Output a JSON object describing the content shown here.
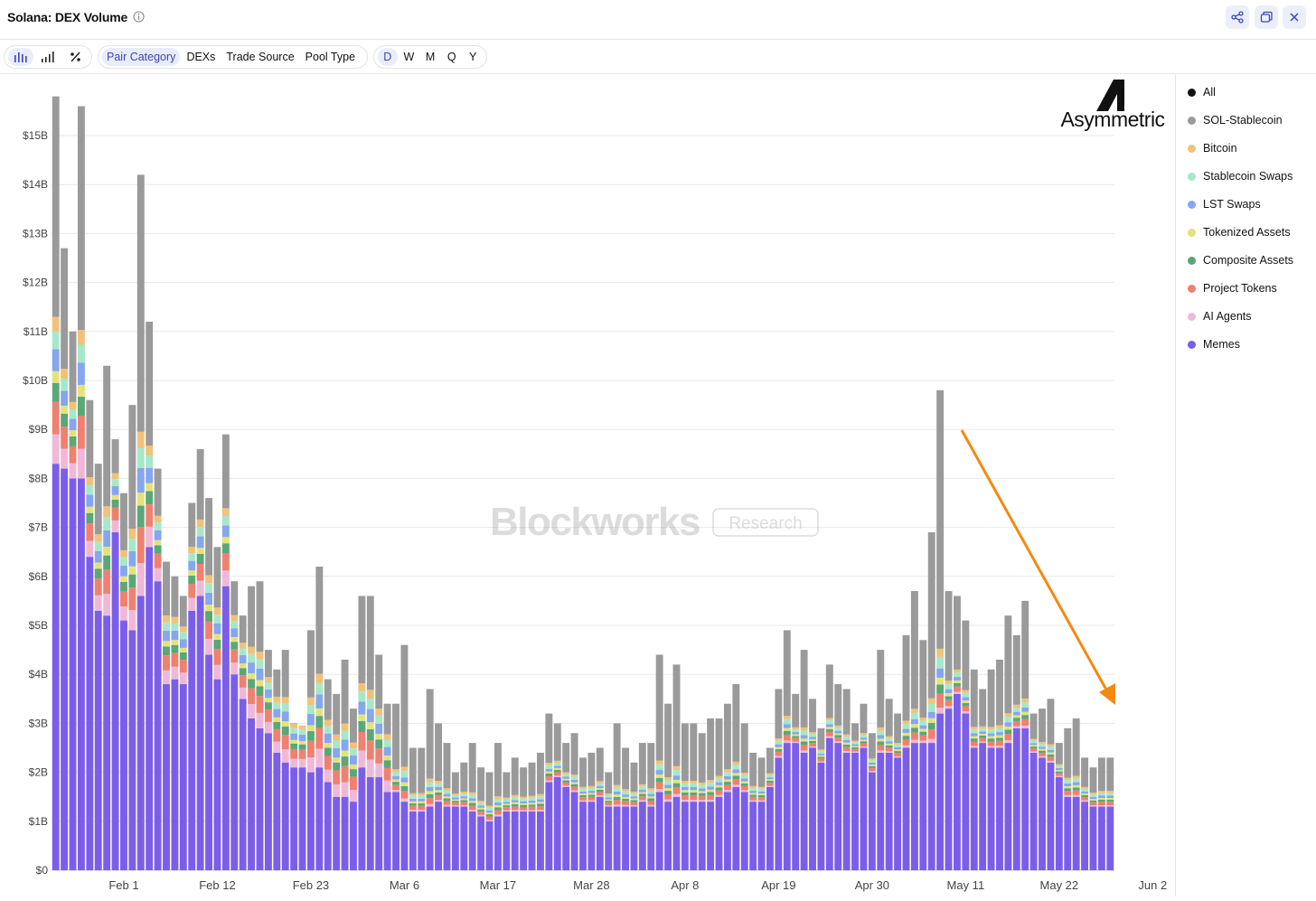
{
  "header": {
    "title": "Solana: DEX Volume"
  },
  "toolbar": {
    "chart_type_buttons": [
      "bar-chart",
      "stacked-bar-chart",
      "percent"
    ],
    "group_tabs": [
      "Pair Category",
      "DEXs",
      "Trade Source",
      "Pool Type"
    ],
    "selected_group": "Pair Category",
    "interval_tabs": [
      "D",
      "W",
      "M",
      "Q",
      "Y"
    ],
    "selected_interval": "D"
  },
  "watermark": {
    "main": "Blockworks",
    "badge": "Research"
  },
  "logo": {
    "text": "Asymmetric"
  },
  "colors": {
    "Memes": "#7b5ee8",
    "AI Agents": "#f0b8d8",
    "Project Tokens": "#f08070",
    "Composite Assets": "#5aa777",
    "Tokenized Assets": "#e3e37a",
    "LST Swaps": "#86a6ef",
    "Stablecoin Swaps": "#a6e8c9",
    "Bitcoin": "#f0c27a",
    "SOL-Stablecoin": "#9a9a9a",
    "All": "#111111",
    "arrow": "#f5890f"
  },
  "legend": [
    "All",
    "SOL-Stablecoin",
    "Bitcoin",
    "Stablecoin Swaps",
    "LST Swaps",
    "Tokenized Assets",
    "Composite Assets",
    "Project Tokens",
    "AI Agents",
    "Memes"
  ],
  "chart_data": {
    "type": "bar",
    "stacked": true,
    "x_ticks": [
      "Feb 1",
      "Feb 12",
      "Feb 23",
      "Mar 6",
      "Mar 17",
      "Mar 28",
      "Apr 8",
      "Apr 19",
      "Apr 30",
      "May 11",
      "May 22",
      "Jun 2"
    ],
    "y_ticks": [
      "$0",
      "$1B",
      "$2B",
      "$3B",
      "$4B",
      "$5B",
      "$6B",
      "$7B",
      "$8B",
      "$9B",
      "$10B",
      "$11B",
      "$12B",
      "$13B",
      "$14B",
      "$15B"
    ],
    "ylim": [
      0,
      15.8
    ],
    "unit": "$B",
    "grid": true,
    "legend_position": "right",
    "x_start": "Jan 24",
    "totals": [
      15.8,
      12.7,
      11.0,
      15.6,
      9.6,
      8.3,
      10.3,
      8.8,
      7.7,
      9.5,
      14.2,
      11.2,
      8.2,
      6.3,
      6.0,
      5.6,
      7.5,
      8.6,
      7.6,
      6.6,
      8.9,
      5.9,
      5.2,
      5.8,
      5.9,
      4.5,
      4.1,
      4.5,
      3.0,
      2.9,
      4.9,
      6.2,
      3.9,
      3.6,
      4.3,
      3.3,
      5.6,
      5.6,
      4.4,
      3.4,
      3.4,
      4.6,
      2.5,
      2.5,
      3.7,
      3.0,
      2.6,
      2.0,
      2.2,
      2.6,
      2.1,
      2.0,
      2.6,
      2.0,
      2.3,
      2.1,
      2.2,
      2.4,
      3.2,
      3.0,
      2.6,
      2.8,
      2.3,
      2.4,
      2.5,
      2.0,
      3.0,
      2.5,
      2.2,
      2.6,
      2.6,
      4.4,
      3.4,
      4.2,
      3.0,
      3.0,
      2.8,
      3.1,
      3.1,
      3.4,
      3.8,
      3.0,
      2.4,
      2.3,
      2.5,
      3.7,
      4.9,
      3.6,
      4.5,
      3.5,
      2.9,
      4.2,
      3.8,
      3.7,
      3.0,
      3.4,
      2.8,
      4.5,
      3.5,
      3.2,
      4.8,
      5.7,
      4.7,
      6.9,
      9.8,
      5.7,
      5.6,
      5.1,
      4.1,
      3.7,
      4.1,
      4.3,
      5.2,
      4.8,
      5.5,
      3.2,
      3.3,
      3.5,
      2.6,
      2.9,
      3.1,
      2.3,
      2.1,
      2.3,
      2.3
    ],
    "memes": [
      8.3,
      8.2,
      8.0,
      8.0,
      6.4,
      5.3,
      5.2,
      6.9,
      5.1,
      4.9,
      5.6,
      6.6,
      5.9,
      3.8,
      3.9,
      3.8,
      5.3,
      5.6,
      4.4,
      3.9,
      5.8,
      4.0,
      3.5,
      3.1,
      2.9,
      2.8,
      2.4,
      2.2,
      2.1,
      2.1,
      2.0,
      2.1,
      1.8,
      1.5,
      1.5,
      1.4,
      2.1,
      1.9,
      1.9,
      1.6,
      1.6,
      1.4,
      1.2,
      1.2,
      1.3,
      1.4,
      1.3,
      1.3,
      1.3,
      1.2,
      1.1,
      1.0,
      1.1,
      1.2,
      1.2,
      1.2,
      1.2,
      1.2,
      1.8,
      1.9,
      1.7,
      1.6,
      1.4,
      1.4,
      1.5,
      1.3,
      1.3,
      1.3,
      1.3,
      1.4,
      1.3,
      1.6,
      1.4,
      1.5,
      1.4,
      1.4,
      1.4,
      1.4,
      1.5,
      1.6,
      1.7,
      1.6,
      1.4,
      1.4,
      1.7,
      2.3,
      2.6,
      2.6,
      2.4,
      2.5,
      2.2,
      2.7,
      2.6,
      2.4,
      2.4,
      2.5,
      2.0,
      2.4,
      2.4,
      2.3,
      2.5,
      2.6,
      2.6,
      2.6,
      3.2,
      3.3,
      3.6,
      3.2,
      2.5,
      2.6,
      2.5,
      2.5,
      2.6,
      2.9,
      2.9,
      2.4,
      2.3,
      2.2,
      1.9,
      1.5,
      1.5,
      1.4,
      1.3,
      1.3,
      1.3
    ],
    "series_order": [
      "Memes",
      "AI Agents",
      "Project Tokens",
      "Composite Assets",
      "Tokenized Assets",
      "LST Swaps",
      "Stablecoin Swaps",
      "Bitcoin",
      "SOL-Stablecoin"
    ]
  }
}
